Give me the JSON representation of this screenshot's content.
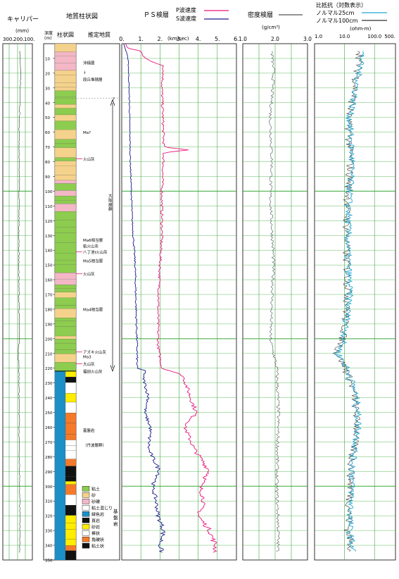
{
  "headers": {
    "caliper": "キャリパー",
    "caliper_unit": "(mm)",
    "geo": "地質柱状図",
    "depth": "深度",
    "depth_unit": "(m)",
    "column": "柱状図",
    "strata": "推定地質",
    "ps": "ＰＳ検層",
    "p_legend": "P波速度",
    "s_legend": "S波速度",
    "vel_unit": "(km/sec)",
    "density": "密度検層",
    "density_unit": "(g/cm³)",
    "resist": "比抵抗（対数表示）",
    "res25": "ノルマル25cm",
    "res100": "ノルマル100cm",
    "res_unit": "(ohm-m)"
  },
  "chart_data": {
    "type": "line",
    "depth_axis": {
      "min": 0,
      "max": 350,
      "ticks": [
        10,
        20,
        30,
        40,
        50,
        60,
        70,
        80,
        90,
        100,
        110,
        120,
        130,
        140,
        150,
        160,
        170,
        180,
        190,
        200,
        210,
        220,
        230,
        240,
        250,
        260,
        270,
        280,
        290,
        300,
        310,
        320,
        330,
        340,
        350
      ]
    },
    "caliper": {
      "ticks": [
        "300.",
        "200.",
        "100."
      ],
      "range": [
        300,
        100
      ],
      "reversed": true,
      "profile": [
        [
          5,
          185
        ],
        [
          20,
          178
        ],
        [
          35,
          183
        ],
        [
          60,
          190
        ],
        [
          95,
          188
        ],
        [
          130,
          192
        ],
        [
          170,
          190
        ],
        [
          200,
          188
        ],
        [
          210,
          195
        ],
        [
          230,
          190
        ],
        [
          260,
          189
        ],
        [
          300,
          186
        ],
        [
          320,
          184
        ],
        [
          345,
          185
        ]
      ]
    },
    "velocity": {
      "ticks": [
        "0.",
        "1.",
        "2.",
        "3.",
        "4.",
        "5.",
        "6."
      ],
      "range": [
        0,
        6
      ],
      "p_color": "#e8157a",
      "s_color": "#1b1b8a",
      "p_profile": [
        [
          0,
          0.2
        ],
        [
          3,
          0.3
        ],
        [
          5,
          1.0
        ],
        [
          8,
          1.1
        ],
        [
          12,
          1.5
        ],
        [
          15,
          2.2
        ],
        [
          30,
          2.1
        ],
        [
          70,
          2.2
        ],
        [
          72,
          3.4
        ],
        [
          74,
          2.2
        ],
        [
          100,
          2.1
        ],
        [
          130,
          2.1
        ],
        [
          150,
          2.0
        ],
        [
          180,
          1.9
        ],
        [
          205,
          1.9
        ],
        [
          220,
          2.1
        ],
        [
          222,
          2.6
        ],
        [
          225,
          3.2
        ],
        [
          240,
          3.6
        ],
        [
          250,
          3.9
        ],
        [
          260,
          3.3
        ],
        [
          275,
          3.8
        ],
        [
          290,
          4.6
        ],
        [
          300,
          4.1
        ],
        [
          310,
          4.3
        ],
        [
          320,
          4.0
        ],
        [
          330,
          4.6
        ],
        [
          340,
          4.9
        ],
        [
          345,
          4.9
        ]
      ],
      "s_profile": [
        [
          0,
          0.1
        ],
        [
          8,
          0.3
        ],
        [
          15,
          0.35
        ],
        [
          40,
          0.4
        ],
        [
          80,
          0.45
        ],
        [
          120,
          0.55
        ],
        [
          150,
          0.7
        ],
        [
          180,
          0.75
        ],
        [
          205,
          0.8
        ],
        [
          220,
          0.8
        ],
        [
          222,
          1.3
        ],
        [
          225,
          1.1
        ],
        [
          240,
          1.4
        ],
        [
          250,
          1.2
        ],
        [
          260,
          1.5
        ],
        [
          275,
          1.4
        ],
        [
          290,
          2.0
        ],
        [
          300,
          1.6
        ],
        [
          310,
          1.8
        ],
        [
          320,
          1.9
        ],
        [
          330,
          2.2
        ],
        [
          340,
          2.0
        ],
        [
          345,
          2.1
        ]
      ]
    },
    "density": {
      "ticks": [
        "1.0",
        "2.0",
        "3.0"
      ],
      "range": [
        1.0,
        3.0
      ],
      "color": "#555555",
      "profile": [
        [
          5,
          1.9
        ],
        [
          20,
          1.95
        ],
        [
          50,
          1.85
        ],
        [
          80,
          1.9
        ],
        [
          100,
          1.85
        ],
        [
          150,
          1.95
        ],
        [
          200,
          1.85
        ],
        [
          220,
          2.05
        ],
        [
          250,
          2.1
        ],
        [
          300,
          2.05
        ],
        [
          330,
          2.1
        ],
        [
          345,
          2.08
        ]
      ]
    },
    "resistivity": {
      "ticks": [
        "1.0",
        "10.0",
        "100.0",
        "500."
      ],
      "log": true,
      "range": [
        1,
        500
      ],
      "n25_color": "#22a6d2",
      "n100_color": "#333333",
      "profile": [
        [
          5,
          40
        ],
        [
          20,
          30
        ],
        [
          50,
          15
        ],
        [
          80,
          18
        ],
        [
          110,
          14
        ],
        [
          140,
          13
        ],
        [
          170,
          15
        ],
        [
          200,
          10
        ],
        [
          210,
          6
        ],
        [
          220,
          12
        ],
        [
          240,
          25
        ],
        [
          260,
          30
        ],
        [
          280,
          20
        ],
        [
          300,
          18
        ],
        [
          330,
          15
        ],
        [
          345,
          20
        ]
      ]
    }
  },
  "column": {
    "colors": {
      "clay": "#8ccc4e",
      "sand": "#f5d28b",
      "sand_gravel": "#f3b7c6",
      "chert": "#000000",
      "greenstone": "#1b8fc6",
      "shale": "#111111",
      "sandstone": "#ffec00",
      "breccia": "#f47a2a"
    },
    "labels": [
      {
        "depth": 13,
        "text": "沖積層",
        "red": false
      },
      {
        "depth": 19,
        "text": "↓",
        "red": false
      },
      {
        "depth": 24,
        "text": "段丘堆積層",
        "red": false
      },
      {
        "depth": 37,
        "text": "?",
        "red": false
      },
      {
        "depth": 60,
        "text": "Ma?",
        "red": false
      },
      {
        "depth": 78,
        "text": "火山灰",
        "red": true
      },
      {
        "depth": 103,
        "text": "大",
        "red": false
      },
      {
        "depth": 106,
        "text": "阪",
        "red": false
      },
      {
        "depth": 109,
        "text": "層",
        "red": false
      },
      {
        "depth": 112,
        "text": "群",
        "red": false
      },
      {
        "depth": 133,
        "text": "Ma6相当層",
        "red": false
      },
      {
        "depth": 137,
        "text": "粘火山灰",
        "red": false
      },
      {
        "depth": 141,
        "text": "八丁池Ⅰ火山灰",
        "red": true
      },
      {
        "depth": 147,
        "text": "Ma5相当層",
        "red": false
      },
      {
        "depth": 156,
        "text": "火山灰",
        "red": true
      },
      {
        "depth": 180,
        "text": "Ma4相当層",
        "red": false
      },
      {
        "depth": 209,
        "text": "アズキ火山灰",
        "red": true
      },
      {
        "depth": 212,
        "text": "Ma3",
        "red": false
      },
      {
        "depth": 217,
        "text": "大山灰",
        "red": true
      },
      {
        "depth": 222,
        "text": "福田火山灰",
        "red": false
      },
      {
        "depth": 262,
        "text": "基盤岩",
        "red": false
      },
      {
        "depth": 272,
        "text": "（丹波層群）",
        "red": false
      }
    ],
    "legend": [
      {
        "color": "#8ccc4e",
        "text": "粘土"
      },
      {
        "color": "#f5d28b",
        "text": "砂"
      },
      {
        "color": "#f3b7c6",
        "text": "砂礫"
      },
      {
        "color": "#ffffff",
        "text": "粘土混じり"
      },
      {
        "color": "#1b8fc6",
        "text": "緑色岩"
      },
      {
        "color": "#111111",
        "text": "頁岩"
      },
      {
        "color": "#ffec00",
        "text": "砂岩"
      },
      {
        "color": "#ffffff",
        "text": "棒状"
      },
      {
        "color": "#f47a2a",
        "text": "角礫状"
      },
      {
        "color": "#111111",
        "text": "粘土状"
      }
    ],
    "legend_side": [
      "基",
      "盤",
      "岩"
    ]
  }
}
